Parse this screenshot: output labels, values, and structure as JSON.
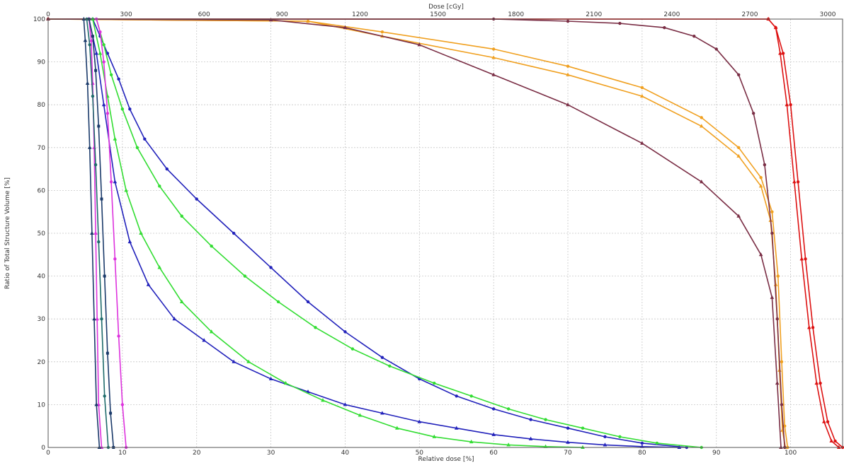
{
  "chart_data": {
    "type": "line",
    "xlabel": "Relative dose [%]",
    "x2label": "Dose [cGy]",
    "ylabel": "Ratio of Total Structure Volume [%]",
    "xlim": [
      0,
      107
    ],
    "ylim": [
      0,
      100
    ],
    "x_ticks": [
      0,
      10,
      20,
      30,
      40,
      50,
      60,
      70,
      80,
      90,
      100
    ],
    "x_tick_labels": [
      "0",
      "10",
      "20",
      "30",
      "40",
      "50",
      "60",
      "70",
      "80",
      "90",
      "100"
    ],
    "x2_ticks": [
      0,
      300,
      600,
      900,
      1200,
      1500,
      1800,
      2100,
      2400,
      2700,
      3000
    ],
    "x2_tick_labels": [
      "0",
      "300",
      "600",
      "900",
      "1200",
      "1500",
      "1800",
      "2100",
      "2400",
      "2700",
      "3000"
    ],
    "x2_per_x": 28.57,
    "y_ticks": [
      0,
      10,
      20,
      30,
      40,
      50,
      60,
      70,
      80,
      90,
      100
    ],
    "y_tick_labels": [
      "0",
      "10",
      "20",
      "30",
      "40",
      "50",
      "60",
      "70",
      "80",
      "90",
      "100"
    ],
    "grid": true,
    "series": [
      {
        "color": "#dd1111",
        "marker": "circle",
        "x": [
          0,
          97,
          98,
          99,
          100,
          101,
          102,
          103,
          104,
          105,
          106,
          107
        ],
        "y": [
          100,
          100,
          98,
          92,
          80,
          62,
          44,
          28,
          15,
          6,
          1.5,
          0
        ]
      },
      {
        "color": "#dd1111",
        "marker": "triangle",
        "x": [
          0,
          97,
          98,
          98.6,
          99.5,
          100.5,
          101.5,
          102.5,
          103.5,
          104.5,
          105.5,
          106.5
        ],
        "y": [
          100,
          100,
          98,
          92,
          80,
          62,
          44,
          28,
          15,
          6,
          1.5,
          0
        ]
      },
      {
        "color": "#f0a020",
        "marker": "circle",
        "x": [
          0,
          35,
          45,
          60,
          70,
          80,
          88,
          93,
          96,
          97.5,
          98.3,
          98.8,
          99.2,
          99.6
        ],
        "y": [
          100,
          99.5,
          97,
          93,
          89,
          84,
          77,
          70,
          63,
          55,
          40,
          20,
          5,
          0
        ]
      },
      {
        "color": "#f0a020",
        "marker": "triangle",
        "x": [
          0,
          35,
          45,
          60,
          70,
          80,
          88,
          93,
          96,
          97.3,
          98,
          98.5,
          98.9,
          99.3
        ],
        "y": [
          100,
          99.5,
          96,
          91,
          87,
          82,
          75,
          68,
          61,
          53,
          38,
          18,
          4,
          0
        ]
      },
      {
        "color": "#7a2e45",
        "marker": "circle",
        "x": [
          0,
          60,
          70,
          77,
          83,
          87,
          90,
          93,
          95,
          96.5,
          97.5,
          98.2,
          98.8,
          99.2
        ],
        "y": [
          100,
          100,
          99.5,
          99,
          98,
          96,
          93,
          87,
          78,
          66,
          50,
          30,
          10,
          0
        ]
      },
      {
        "color": "#7a2e45",
        "marker": "triangle",
        "x": [
          0,
          30,
          40,
          50,
          60,
          70,
          80,
          88,
          93,
          96,
          97.5,
          98.2,
          98.7
        ],
        "y": [
          100,
          99.8,
          98,
          94,
          87,
          80,
          71,
          62,
          54,
          45,
          35,
          15,
          0
        ]
      },
      {
        "color": "#2222bb",
        "marker": "triangle",
        "x": [
          5.5,
          6.5,
          7.5,
          9,
          11,
          13.5,
          17,
          21,
          25,
          30,
          35,
          40,
          45,
          50,
          55,
          60,
          65,
          70,
          75,
          80,
          85
        ],
        "y": [
          100,
          92,
          80,
          62,
          48,
          38,
          30,
          25,
          20,
          16,
          13,
          10,
          8,
          6,
          4.5,
          3,
          2,
          1.2,
          0.6,
          0.2,
          0
        ]
      },
      {
        "color": "#2222bb",
        "marker": "circle",
        "x": [
          6,
          7,
          8,
          9.5,
          11,
          13,
          16,
          20,
          25,
          30,
          35,
          40,
          45,
          50,
          55,
          60,
          65,
          70,
          75,
          80,
          86
        ],
        "y": [
          100,
          96,
          92,
          86,
          79,
          72,
          65,
          58,
          50,
          42,
          34,
          27,
          21,
          16,
          12,
          9,
          6.5,
          4.5,
          2.5,
          1,
          0
        ]
      },
      {
        "color": "#33dd33",
        "marker": "triangle",
        "x": [
          6,
          7,
          8,
          9,
          10.5,
          12.5,
          15,
          18,
          22,
          27,
          32,
          37,
          42,
          47,
          52,
          57,
          62,
          67,
          72
        ],
        "y": [
          100,
          92,
          82,
          72,
          60,
          50,
          42,
          34,
          27,
          20,
          15,
          11,
          7.5,
          4.5,
          2.5,
          1.3,
          0.6,
          0.2,
          0
        ]
      },
      {
        "color": "#33dd33",
        "marker": "circle",
        "x": [
          6.5,
          7.5,
          8.5,
          10,
          12,
          15,
          18,
          22,
          26.5,
          31,
          36,
          41,
          46,
          52,
          57,
          62,
          67,
          72,
          77,
          82,
          88
        ],
        "y": [
          100,
          94,
          87,
          79,
          70,
          61,
          54,
          47,
          40,
          34,
          28,
          23,
          19,
          15,
          12,
          9,
          6.5,
          4.5,
          2.5,
          1,
          0
        ]
      },
      {
        "color": "#dd33dd",
        "marker": "triangle",
        "x": [
          5.5,
          5.8,
          6,
          6.2,
          6.4,
          6.6,
          6.8,
          7.2
        ],
        "y": [
          100,
          95,
          85,
          70,
          50,
          30,
          10,
          0
        ]
      },
      {
        "color": "#dd33dd",
        "marker": "circle",
        "x": [
          6.5,
          7,
          7.5,
          8,
          8.5,
          9,
          9.5,
          10,
          10.5
        ],
        "y": [
          100,
          97,
          90,
          78,
          62,
          44,
          26,
          10,
          0
        ]
      },
      {
        "color": "#1a3a6a",
        "marker": "triangle",
        "x": [
          4.8,
          5,
          5.3,
          5.6,
          5.9,
          6.2,
          6.5,
          6.9
        ],
        "y": [
          100,
          95,
          85,
          70,
          50,
          30,
          10,
          0
        ]
      },
      {
        "color": "#1a3a6a",
        "marker": "square",
        "x": [
          5.5,
          6,
          6.4,
          6.8,
          7.2,
          7.6,
          8,
          8.4,
          8.8
        ],
        "y": [
          100,
          96,
          88,
          75,
          58,
          40,
          22,
          8,
          0
        ]
      },
      {
        "color": "#1e6b6b",
        "marker": "circle",
        "x": [
          5.2,
          5.6,
          6,
          6.4,
          6.8,
          7.2,
          7.6,
          8.1
        ],
        "y": [
          100,
          94,
          82,
          66,
          48,
          30,
          12,
          0
        ]
      }
    ]
  }
}
